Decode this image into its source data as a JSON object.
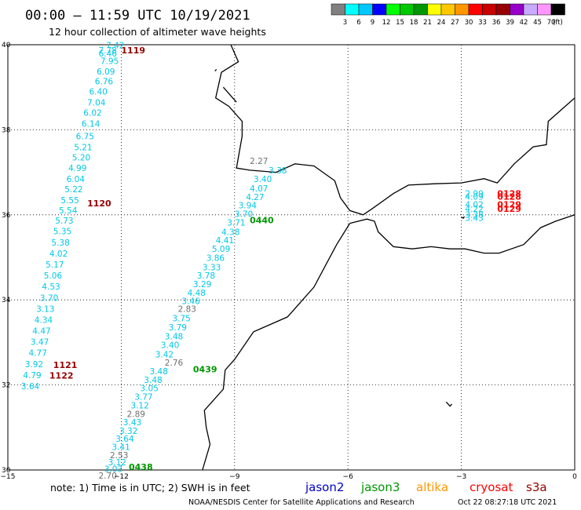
{
  "header": {
    "title": "00:00 – 11:59 UTC 10/19/2021",
    "subtitle": "12 hour collection of altimeter wave heights"
  },
  "scale": {
    "labels": [
      "3",
      "6",
      "9",
      "12",
      "15",
      "18",
      "21",
      "24",
      "27",
      "30",
      "33",
      "36",
      "39",
      "42",
      "45",
      "70"
    ],
    "unit": "(ft)",
    "colors": [
      "#808080",
      "#00ffff",
      "#00c8ff",
      "#0000ff",
      "#00ff00",
      "#00c800",
      "#009600",
      "#ffff00",
      "#ffc800",
      "#ff9600",
      "#ff0000",
      "#c80000",
      "#960000",
      "#9600c8",
      "#c8aaff",
      "#ff96ff",
      "#000000"
    ]
  },
  "axes": {
    "lat_ticks": [
      "40",
      "38",
      "36",
      "34",
      "32",
      "30"
    ],
    "lon_ticks": [
      "−15",
      "−12",
      "−9",
      "−6",
      "−3",
      "0"
    ]
  },
  "legend": {
    "note": "note: 1) Time is in UTC; 2) SWH is in feet",
    "satellites": [
      {
        "name": "jason2",
        "color": "#0000c8"
      },
      {
        "name": "jason3",
        "color": "#009600"
      },
      {
        "name": "altika",
        "color": "#ff9600"
      },
      {
        "name": "cryosat",
        "color": "#ff0000"
      },
      {
        "name": "s3a",
        "color": "#960000"
      }
    ]
  },
  "credit": {
    "org": "NOAA/NESDIS Center for Satellite Applications and Research",
    "timestamp": "Oct 22 08:27:18 UTC 2021"
  },
  "map_data": {
    "extent": {
      "lon": [
        -15,
        0
      ],
      "lat": [
        30,
        40
      ]
    },
    "gridlines": "dotted",
    "track_times": [
      {
        "text": "1119",
        "satellite": "s3a",
        "lon": -12.0,
        "lat": 39.8
      },
      {
        "text": "1120",
        "satellite": "s3a",
        "lon": -12.9,
        "lat": 36.2
      },
      {
        "text": "1121",
        "satellite": "s3a",
        "lon": -13.8,
        "lat": 32.4
      },
      {
        "text": "1122",
        "satellite": "s3a",
        "lon": -13.9,
        "lat": 32.15
      },
      {
        "text": "0440",
        "satellite": "jason3",
        "lon": -8.6,
        "lat": 35.8
      },
      {
        "text": "0439",
        "satellite": "jason3",
        "lon": -10.1,
        "lat": 32.3
      },
      {
        "text": "0438",
        "satellite": "jason3",
        "lon": -11.8,
        "lat": 30.0
      },
      {
        "text": "0128",
        "satellite": "cryosat",
        "lon": -2.05,
        "lat": 36.43
      },
      {
        "text": "0128",
        "satellite": "cryosat",
        "lon": -2.05,
        "lat": 36.36
      },
      {
        "text": "0129",
        "satellite": "cryosat",
        "lon": -2.05,
        "lat": 36.17
      },
      {
        "text": "0129",
        "satellite": "cryosat",
        "lon": -2.05,
        "lat": 36.07
      }
    ],
    "observations": [
      {
        "v": "7.42",
        "lon": -12.4,
        "lat": 39.92
      },
      {
        "v": "7.78",
        "lon": -12.6,
        "lat": 39.8
      },
      {
        "v": "6.46",
        "lon": -12.6,
        "lat": 39.72
      },
      {
        "v": "7.95",
        "lon": -12.55,
        "lat": 39.55
      },
      {
        "v": "6.09",
        "lon": -12.65,
        "lat": 39.3
      },
      {
        "v": "6.76",
        "lon": -12.7,
        "lat": 39.07
      },
      {
        "v": "6.40",
        "lon": -12.85,
        "lat": 38.83
      },
      {
        "v": "7.04",
        "lon": -12.9,
        "lat": 38.57
      },
      {
        "v": "6.02",
        "lon": -13.0,
        "lat": 38.33
      },
      {
        "v": "6.14",
        "lon": -13.05,
        "lat": 38.07
      },
      {
        "v": "6.75",
        "lon": -13.2,
        "lat": 37.78
      },
      {
        "v": "5.21",
        "lon": -13.25,
        "lat": 37.52
      },
      {
        "v": "5.20",
        "lon": -13.3,
        "lat": 37.28
      },
      {
        "v": "4.99",
        "lon": -13.4,
        "lat": 37.03
      },
      {
        "v": "6.04",
        "lon": -13.45,
        "lat": 36.77
      },
      {
        "v": "5.22",
        "lon": -13.5,
        "lat": 36.53
      },
      {
        "v": "5.55",
        "lon": -13.6,
        "lat": 36.27
      },
      {
        "v": "5.54",
        "lon": -13.65,
        "lat": 36.03
      },
      {
        "v": "5.73",
        "lon": -13.75,
        "lat": 35.79
      },
      {
        "v": "5.35",
        "lon": -13.8,
        "lat": 35.54
      },
      {
        "v": "5.38",
        "lon": -13.85,
        "lat": 35.28
      },
      {
        "v": "4.02",
        "lon": -13.9,
        "lat": 35.02
      },
      {
        "v": "5.17",
        "lon": -14.0,
        "lat": 34.76
      },
      {
        "v": "5.06",
        "lon": -14.05,
        "lat": 34.5
      },
      {
        "v": "4.53",
        "lon": -14.1,
        "lat": 34.24
      },
      {
        "v": "3.70",
        "lon": -14.15,
        "lat": 33.98
      },
      {
        "v": "3.13",
        "lon": -14.25,
        "lat": 33.72
      },
      {
        "v": "4.34",
        "lon": -14.3,
        "lat": 33.46
      },
      {
        "v": "4.47",
        "lon": -14.35,
        "lat": 33.2
      },
      {
        "v": "3.47",
        "lon": -14.4,
        "lat": 32.94
      },
      {
        "v": "4.77",
        "lon": -14.45,
        "lat": 32.68
      },
      {
        "v": "3.92",
        "lon": -14.55,
        "lat": 32.42
      },
      {
        "v": "4.79",
        "lon": -14.6,
        "lat": 32.16
      },
      {
        "v": "3.64",
        "lon": -14.65,
        "lat": 31.9
      },
      {
        "v": "2.27",
        "lon": -8.6,
        "lat": 37.2,
        "c": "gray"
      },
      {
        "v": "3.38",
        "lon": -8.1,
        "lat": 36.97
      },
      {
        "v": "3.40",
        "lon": -8.5,
        "lat": 36.77
      },
      {
        "v": "4.07",
        "lon": -8.6,
        "lat": 36.55
      },
      {
        "v": "4.27",
        "lon": -8.7,
        "lat": 36.35
      },
      {
        "v": "3.94",
        "lon": -8.9,
        "lat": 36.15
      },
      {
        "v": "3.70",
        "lon": -9.0,
        "lat": 35.95
      },
      {
        "v": "3.71",
        "lon": -9.2,
        "lat": 35.75
      },
      {
        "v": "4.38",
        "lon": -9.35,
        "lat": 35.53
      },
      {
        "v": "4.41",
        "lon": -9.5,
        "lat": 35.33
      },
      {
        "v": "5.09",
        "lon": -9.6,
        "lat": 35.13
      },
      {
        "v": "3.86",
        "lon": -9.75,
        "lat": 34.92
      },
      {
        "v": "3.33",
        "lon": -9.85,
        "lat": 34.7
      },
      {
        "v": "3.78",
        "lon": -10.0,
        "lat": 34.5
      },
      {
        "v": "3.29",
        "lon": -10.1,
        "lat": 34.3
      },
      {
        "v": "4.48",
        "lon": -10.25,
        "lat": 34.1
      },
      {
        "v": "3.46",
        "lon": -10.4,
        "lat": 33.9
      },
      {
        "v": "2.83",
        "lon": -10.5,
        "lat": 33.72,
        "c": "gray"
      },
      {
        "v": "3.75",
        "lon": -10.65,
        "lat": 33.5
      },
      {
        "v": "3.79",
        "lon": -10.75,
        "lat": 33.28
      },
      {
        "v": "3.48",
        "lon": -10.85,
        "lat": 33.07
      },
      {
        "v": "3.40",
        "lon": -10.95,
        "lat": 32.87
      },
      {
        "v": "3.42",
        "lon": -11.1,
        "lat": 32.65
      },
      {
        "v": "2.76",
        "lon": -10.85,
        "lat": 32.45,
        "c": "gray"
      },
      {
        "v": "3.48",
        "lon": -11.25,
        "lat": 32.25
      },
      {
        "v": "3.48",
        "lon": -11.4,
        "lat": 32.05
      },
      {
        "v": "3.05",
        "lon": -11.5,
        "lat": 31.85
      },
      {
        "v": "3.77",
        "lon": -11.65,
        "lat": 31.65
      },
      {
        "v": "3.12",
        "lon": -11.75,
        "lat": 31.45
      },
      {
        "v": "2.89",
        "lon": -11.85,
        "lat": 31.25,
        "c": "gray"
      },
      {
        "v": "3.43",
        "lon": -11.95,
        "lat": 31.05
      },
      {
        "v": "3.32",
        "lon": -12.05,
        "lat": 30.85
      },
      {
        "v": "3.64",
        "lon": -12.15,
        "lat": 30.66
      },
      {
        "v": "3.41",
        "lon": -12.25,
        "lat": 30.47
      },
      {
        "v": "2.53",
        "lon": -12.3,
        "lat": 30.28,
        "c": "gray"
      },
      {
        "v": "3.12",
        "lon": -12.35,
        "lat": 30.11
      },
      {
        "v": "3.03",
        "lon": -12.45,
        "lat": 29.95
      },
      {
        "v": "2.70",
        "lon": -12.6,
        "lat": 29.8,
        "c": "gray"
      },
      {
        "v": "2.99",
        "lon": -2.9,
        "lat": 36.43
      },
      {
        "v": "4.09",
        "lon": -2.9,
        "lat": 36.36
      },
      {
        "v": "4.02",
        "lon": -2.9,
        "lat": 36.17
      },
      {
        "v": "4.22",
        "lon": -2.9,
        "lat": 36.07
      },
      {
        "v": "3.38",
        "lon": -2.9,
        "lat": 35.93
      },
      {
        "v": "3.43",
        "lon": -2.9,
        "lat": 35.86
      }
    ],
    "coastlines": [
      [
        [
          -9.1,
          40.0
        ],
        [
          -8.9,
          39.6
        ],
        [
          -9.35,
          39.35
        ],
        [
          -9.5,
          38.75
        ],
        [
          -9.15,
          38.55
        ],
        [
          -8.8,
          38.2
        ],
        [
          -8.8,
          37.85
        ],
        [
          -8.95,
          37.1
        ],
        [
          -8.6,
          37.05
        ],
        [
          -7.9,
          37.0
        ],
        [
          -7.4,
          37.2
        ],
        [
          -6.9,
          37.15
        ],
        [
          -6.35,
          36.8
        ],
        [
          -6.2,
          36.4
        ],
        [
          -5.95,
          36.1
        ],
        [
          -5.6,
          36.0
        ],
        [
          -5.35,
          36.15
        ],
        [
          -4.8,
          36.5
        ],
        [
          -4.4,
          36.7
        ],
        [
          -3.7,
          36.73
        ],
        [
          -3.0,
          36.75
        ],
        [
          -2.4,
          36.85
        ],
        [
          -2.05,
          36.75
        ],
        [
          -1.6,
          37.2
        ],
        [
          -1.1,
          37.6
        ],
        [
          -0.75,
          37.65
        ],
        [
          -0.7,
          38.2
        ],
        [
          0.0,
          38.75
        ]
      ],
      [
        [
          -9.3,
          39.0
        ],
        [
          -9.2,
          38.9
        ],
        [
          -9.05,
          38.75
        ],
        [
          -8.95,
          38.65
        ]
      ],
      [
        [
          -5.95,
          35.8
        ],
        [
          -5.5,
          35.9
        ],
        [
          -5.3,
          35.85
        ],
        [
          -5.2,
          35.6
        ],
        [
          -4.8,
          35.25
        ],
        [
          -4.3,
          35.2
        ],
        [
          -3.8,
          35.25
        ],
        [
          -3.3,
          35.2
        ],
        [
          -2.9,
          35.2
        ],
        [
          -2.4,
          35.1
        ],
        [
          -2.0,
          35.1
        ],
        [
          -1.35,
          35.3
        ],
        [
          -0.9,
          35.7
        ],
        [
          -0.5,
          35.85
        ],
        [
          0.0,
          36.0
        ]
      ],
      [
        [
          -5.95,
          35.8
        ],
        [
          -6.3,
          35.3
        ],
        [
          -6.6,
          34.8
        ],
        [
          -6.9,
          34.3
        ],
        [
          -7.6,
          33.6
        ],
        [
          -8.5,
          33.25
        ],
        [
          -9.0,
          32.6
        ],
        [
          -9.25,
          32.35
        ],
        [
          -9.3,
          31.9
        ],
        [
          -9.8,
          31.4
        ],
        [
          -9.75,
          31.0
        ],
        [
          -9.65,
          30.6
        ],
        [
          -9.75,
          30.3
        ],
        [
          -9.85,
          30.0
        ]
      ]
    ],
    "islands": [
      [
        [
          -9.52,
          39.38
        ],
        [
          -9.48,
          39.42
        ]
      ],
      [
        [
          -3.0,
          35.95
        ],
        [
          -2.95,
          35.92
        ],
        [
          -2.92,
          35.96
        ]
      ],
      [
        [
          -3.4,
          31.6
        ],
        [
          -3.3,
          31.5
        ],
        [
          -3.25,
          31.55
        ]
      ]
    ]
  }
}
